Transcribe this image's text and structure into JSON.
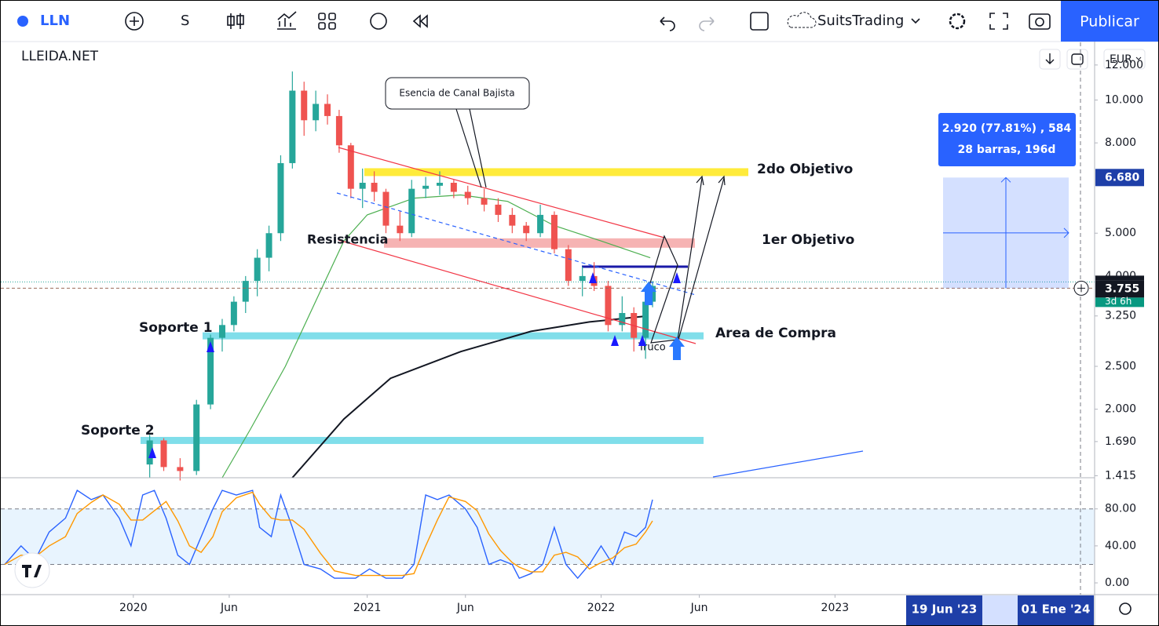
{
  "toolbar": {
    "symbol": "LLN",
    "interval": "S",
    "layout": "SuitsTrading",
    "publish": "Publicar"
  },
  "watermark": "LLEIDA.NET",
  "currency": "EUR",
  "last_price": {
    "value": 3.755,
    "label": "3.755"
  },
  "countdown": "3d 6h",
  "measure": {
    "top": {
      "value": 6.68,
      "label": "6.680"
    },
    "line1": "2.920 (77.81%) , 584",
    "line2": "28 barras, 196d"
  },
  "date_labels": [
    "19 Jun '23",
    "01 Ene '24"
  ],
  "notes": [
    "Esencia de Canal Bajista",
    "Resistencia",
    "Area de Compra",
    "Truco"
  ],
  "chart_data": [
    {
      "type": "candlestick",
      "log": true,
      "xlim": [
        2019.44,
        2024.11
      ],
      "ylim": [
        1.4,
        13.5
      ],
      "yticks": [
        {
          "value": 12,
          "label": "12.000"
        },
        {
          "value": 10,
          "label": "10.000"
        },
        {
          "value": 8,
          "label": "8.000"
        },
        {
          "value": 5,
          "label": "5.000"
        },
        {
          "value": 4,
          "label": "4.000"
        },
        {
          "value": 3.25,
          "label": "3.250"
        },
        {
          "value": 2.5,
          "label": "2.500"
        },
        {
          "value": 2,
          "label": "2.000"
        },
        {
          "value": 1.69,
          "label": "1.690"
        },
        {
          "value": 1.415,
          "label": "1.415"
        }
      ],
      "up_color": "#26a69a",
      "down_color": "#ef5350",
      "x": [
        2020.07,
        2020.13,
        2020.2,
        2020.27,
        2020.33,
        2020.38,
        2020.43,
        2020.48,
        2020.53,
        2020.58,
        2020.63,
        2020.68,
        2020.73,
        2020.78,
        2020.83,
        2020.88,
        2020.93,
        2020.98,
        2021.03,
        2021.08,
        2021.14,
        2021.19,
        2021.25,
        2021.31,
        2021.37,
        2021.43,
        2021.5,
        2021.56,
        2021.62,
        2021.68,
        2021.74,
        2021.8,
        2021.86,
        2021.92,
        2021.97,
        2022.03,
        2022.09,
        2022.14,
        2022.19,
        2022.22
      ],
      "open": [
        1.5,
        1.7,
        1.48,
        1.45,
        2.05,
        2.9,
        3.1,
        3.5,
        3.9,
        4.4,
        5.0,
        7.2,
        10.5,
        9.0,
        9.8,
        9.2,
        7.9,
        6.3,
        6.5,
        6.2,
        5.2,
        5.0,
        6.3,
        6.4,
        6.5,
        6.2,
        6.0,
        5.8,
        5.5,
        5.2,
        5.0,
        5.5,
        4.6,
        3.9,
        4.0,
        3.8,
        3.1,
        3.3,
        2.9,
        3.5
      ],
      "high": [
        1.75,
        1.72,
        1.55,
        2.1,
        2.95,
        3.2,
        3.6,
        4.0,
        4.6,
        5.2,
        7.5,
        11.6,
        11.0,
        10.5,
        10.3,
        9.5,
        8.0,
        7.0,
        6.9,
        6.3,
        5.6,
        6.6,
        6.7,
        6.9,
        6.6,
        6.4,
        6.3,
        6.0,
        5.7,
        5.3,
        5.8,
        5.6,
        4.7,
        4.2,
        4.3,
        3.9,
        3.6,
        3.4,
        3.6,
        3.9
      ],
      "low": [
        1.4,
        1.45,
        1.38,
        1.42,
        2.0,
        2.7,
        3.0,
        3.3,
        3.6,
        4.1,
        4.8,
        7.0,
        8.3,
        8.5,
        8.8,
        7.6,
        6.0,
        5.7,
        5.9,
        5.0,
        4.8,
        4.9,
        6.0,
        6.1,
        6.0,
        5.8,
        5.6,
        5.3,
        5.0,
        4.8,
        4.9,
        4.5,
        3.8,
        3.6,
        3.7,
        3.0,
        3.0,
        2.7,
        2.6,
        3.4
      ],
      "close": [
        1.7,
        1.48,
        1.45,
        2.05,
        2.9,
        3.1,
        3.5,
        3.9,
        4.4,
        5.0,
        7.2,
        10.5,
        9.0,
        9.8,
        9.2,
        7.9,
        6.3,
        6.5,
        6.2,
        5.2,
        5.0,
        6.3,
        6.4,
        6.5,
        6.2,
        6.0,
        5.8,
        5.5,
        5.2,
        5.0,
        5.5,
        4.6,
        3.9,
        4.0,
        3.8,
        3.1,
        3.3,
        2.9,
        3.5,
        3.8
      ],
      "overlays": [
        {
          "color": "#4caf50",
          "x": [
            2020.38,
            2020.5,
            2020.65,
            2020.8,
            2020.9,
            2021.0,
            2021.2,
            2021.4,
            2021.6,
            2021.8,
            2022.0,
            2022.21
          ],
          "values": [
            1.4,
            1.8,
            2.5,
            3.7,
            4.8,
            5.5,
            6.0,
            6.1,
            5.9,
            5.2,
            4.8,
            4.4
          ]
        },
        {
          "color": "#131722",
          "x": [
            2020.68,
            2020.9,
            2021.1,
            2021.4,
            2021.7,
            2021.95,
            2022.2
          ],
          "values": [
            1.4,
            1.9,
            2.35,
            2.7,
            3.0,
            3.15,
            3.25
          ]
        }
      ],
      "levels": [
        {
          "text": "2do Objetivo",
          "value": 6.87,
          "color": "#ffeb3b"
        },
        {
          "text": "1er Objetivo",
          "value": 4.75,
          "color": "#f4a6a6"
        },
        {
          "text": "Soporte 1",
          "value": 2.93,
          "color": "#80deea"
        },
        {
          "text": "Soporte 2",
          "value": 1.7,
          "color": "#80deea"
        },
        {
          "value": 4.2,
          "color": "#1a1aa8"
        }
      ]
    },
    {
      "type": "line",
      "xlim": [
        2019.44,
        2024.11
      ],
      "ylim": [
        -11,
        112
      ],
      "band": [
        20,
        80
      ],
      "yticks": [
        {
          "value": 80,
          "label": "80.00"
        },
        {
          "value": 40,
          "label": "40.00"
        },
        {
          "value": 0,
          "label": "0.00"
        }
      ],
      "xticks": [
        2020,
        {
          "value": 2020.41,
          "label": "Jun"
        },
        2021,
        {
          "value": 2021.42,
          "label": "Jun"
        },
        2022,
        {
          "value": 2022.42,
          "label": "Jun"
        },
        2023
      ],
      "x": [
        2019.45,
        2019.52,
        2019.58,
        2019.64,
        2019.71,
        2019.76,
        2019.82,
        2019.87,
        2019.94,
        2019.99,
        2020.04,
        2020.09,
        2020.14,
        2020.19,
        2020.24,
        2020.29,
        2020.34,
        2020.38,
        2020.44,
        2020.51,
        2020.54,
        2020.59,
        2020.63,
        2020.68,
        2020.73,
        2020.8,
        2020.86,
        2020.95,
        2021.01,
        2021.08,
        2021.15,
        2021.2,
        2021.25,
        2021.3,
        2021.35,
        2021.42,
        2021.47,
        2021.52,
        2021.57,
        2021.62,
        2021.65,
        2021.7,
        2021.75,
        2021.8,
        2021.85,
        2021.9,
        2021.95,
        2022.0,
        2022.05,
        2022.1,
        2022.15,
        2022.19,
        2022.22
      ],
      "series": [
        {
          "color": "#2962ff",
          "values": [
            20,
            40,
            25,
            55,
            70,
            100,
            90,
            95,
            70,
            40,
            95,
            100,
            70,
            30,
            20,
            50,
            80,
            100,
            95,
            100,
            60,
            50,
            95,
            60,
            20,
            15,
            5,
            5,
            15,
            5,
            5,
            20,
            95,
            90,
            95,
            80,
            60,
            20,
            25,
            20,
            5,
            10,
            20,
            60,
            20,
            5,
            20,
            40,
            20,
            55,
            50,
            60,
            90
          ]
        },
        {
          "color": "#ff9800",
          "values": [
            20,
            30,
            28,
            40,
            50,
            75,
            87,
            95,
            85,
            68,
            68,
            78,
            88,
            67,
            40,
            33,
            50,
            77,
            92,
            98,
            85,
            70,
            68,
            68,
            58,
            32,
            13,
            8,
            8,
            8,
            8,
            10,
            40,
            68,
            93,
            88,
            78,
            53,
            35,
            22,
            17,
            12,
            12,
            30,
            33,
            28,
            15,
            22,
            27,
            38,
            42,
            55,
            67
          ]
        }
      ]
    }
  ]
}
